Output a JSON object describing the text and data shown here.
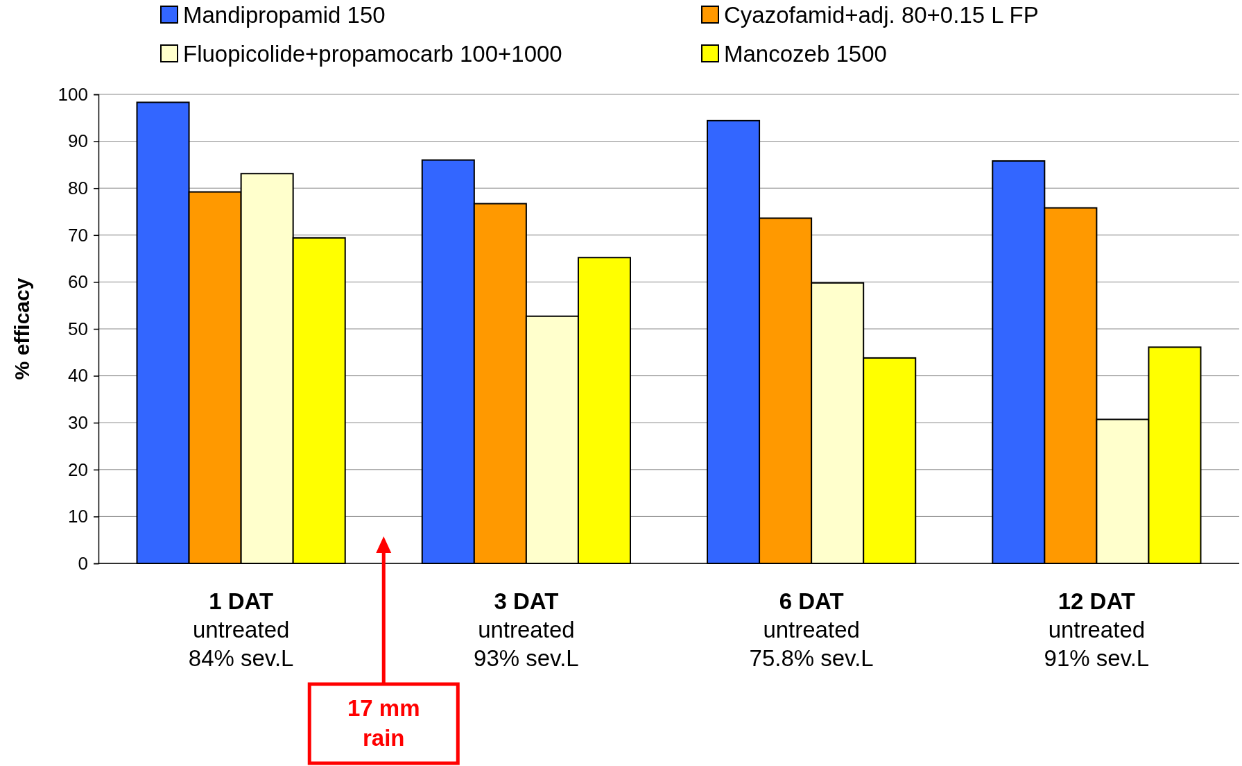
{
  "chart_data": {
    "type": "bar",
    "ylabel": "% efficacy",
    "categories": [
      "1 DAT\nuntreated\n84% sev.L",
      "3 DAT\nuntreated\n93% sev.L",
      "6 DAT\nuntreated\n75.8% sev.L",
      "12 DAT\nuntreated\n91% sev.L"
    ],
    "series": [
      {
        "name": "Mandipropamid 150",
        "color": "#3366ff",
        "values": [
          98.3,
          86,
          94.4,
          85.8
        ]
      },
      {
        "name": "Cyazofamid+adj. 80+0.15 L FP",
        "color": "#ff9900",
        "values": [
          79.2,
          76.7,
          73.6,
          75.8
        ]
      },
      {
        "name": "Fluopicolide+propamocarb 100+1000",
        "color": "#ffffcc",
        "values": [
          83.1,
          52.7,
          59.8,
          30.7
        ]
      },
      {
        "name": "Mancozeb 1500",
        "color": "#ffff00",
        "values": [
          69.4,
          65.2,
          43.8,
          46.1
        ]
      }
    ],
    "ylim": [
      0,
      100
    ],
    "yticks": [
      0,
      10,
      20,
      30,
      40,
      50,
      60,
      70,
      80,
      90,
      100
    ],
    "grid": "y",
    "legend": "top",
    "annotations": [
      "17 mm\nrain"
    ]
  }
}
